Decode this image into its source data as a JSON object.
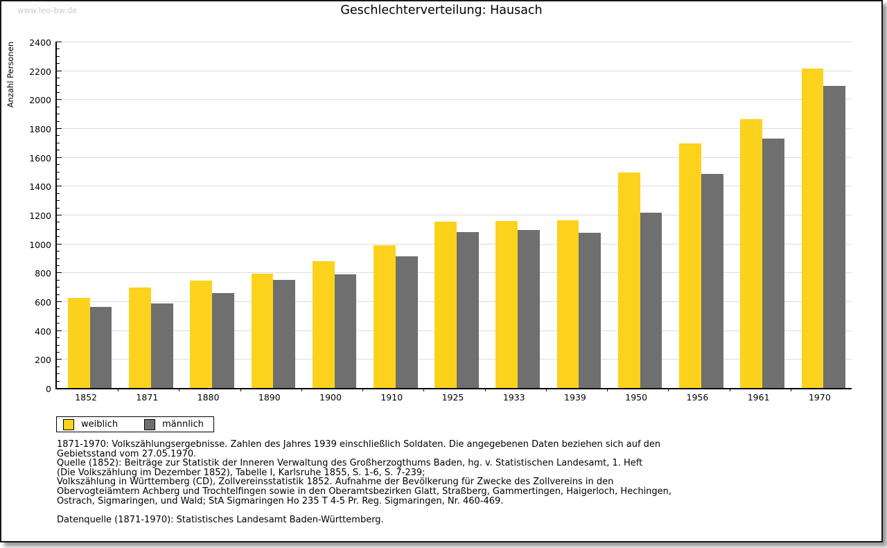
{
  "page": {
    "watermark": "www.leo-bw.de"
  },
  "chart_data": {
    "type": "bar",
    "title": "Geschlechterverteilung: Hausach",
    "xlabel": "",
    "ylabel": "Anzahl Personen",
    "ylim": [
      0,
      2400
    ],
    "ytick_step": 200,
    "minor_tick_step": 50,
    "grid": true,
    "legend_position": "bottom-left",
    "categories": [
      "1852",
      "1871",
      "1880",
      "1890",
      "1900",
      "1910",
      "1925",
      "1933",
      "1939",
      "1950",
      "1956",
      "1961",
      "1970"
    ],
    "series": [
      {
        "name": "weiblich",
        "color": "#FCD21C",
        "values": [
          625,
          697,
          746,
          793,
          877,
          991,
          1151,
          1156,
          1164,
          1495,
          1696,
          1864,
          2215
        ]
      },
      {
        "name": "männlich",
        "color": "#6F6F6F",
        "values": [
          563,
          584,
          657,
          748,
          788,
          913,
          1079,
          1094,
          1073,
          1214,
          1481,
          1729,
          2093
        ]
      }
    ]
  },
  "colors": {
    "gridline": "#dcdcdc",
    "axis": "#000000",
    "watermark": "#cbcbcb"
  },
  "footnote": {
    "lines": [
      "1871-1970: Volkszählungsergebnisse. Zahlen des Jahres 1939 einschließlich Soldaten. Die angegebenen Daten beziehen sich auf den",
      "Gebietsstand vom 27.05.1970.",
      "Quelle (1852): Beiträge zur Statistik der Inneren Verwaltung des Großherzogthums Baden, hg. v. Statistischen Landesamt, 1. Heft",
      "(Die Volkszählung im Dezember 1852), Tabelle I, Karlsruhe 1855, S. 1-6, S. 7-239;",
      "Volkszählung in Württemberg (CD), Zollvereinsstatistik 1852. Aufnahme der Bevölkerung für Zwecke des Zollvereins in den",
      "Obervogteiämtern Achberg und Trochtelfingen sowie in den Oberamtsbezirken Glatt, Straßberg, Gammertingen, Haigerloch, Hechingen,",
      "Ostrach, Sigmaringen, und Wald; StA Sigmaringen Ho 235 T 4-5 Pr. Reg. Sigmaringen, Nr. 460-469."
    ],
    "datasource": "Datenquelle (1871-1970): Statistisches Landesamt Baden-Württemberg."
  }
}
